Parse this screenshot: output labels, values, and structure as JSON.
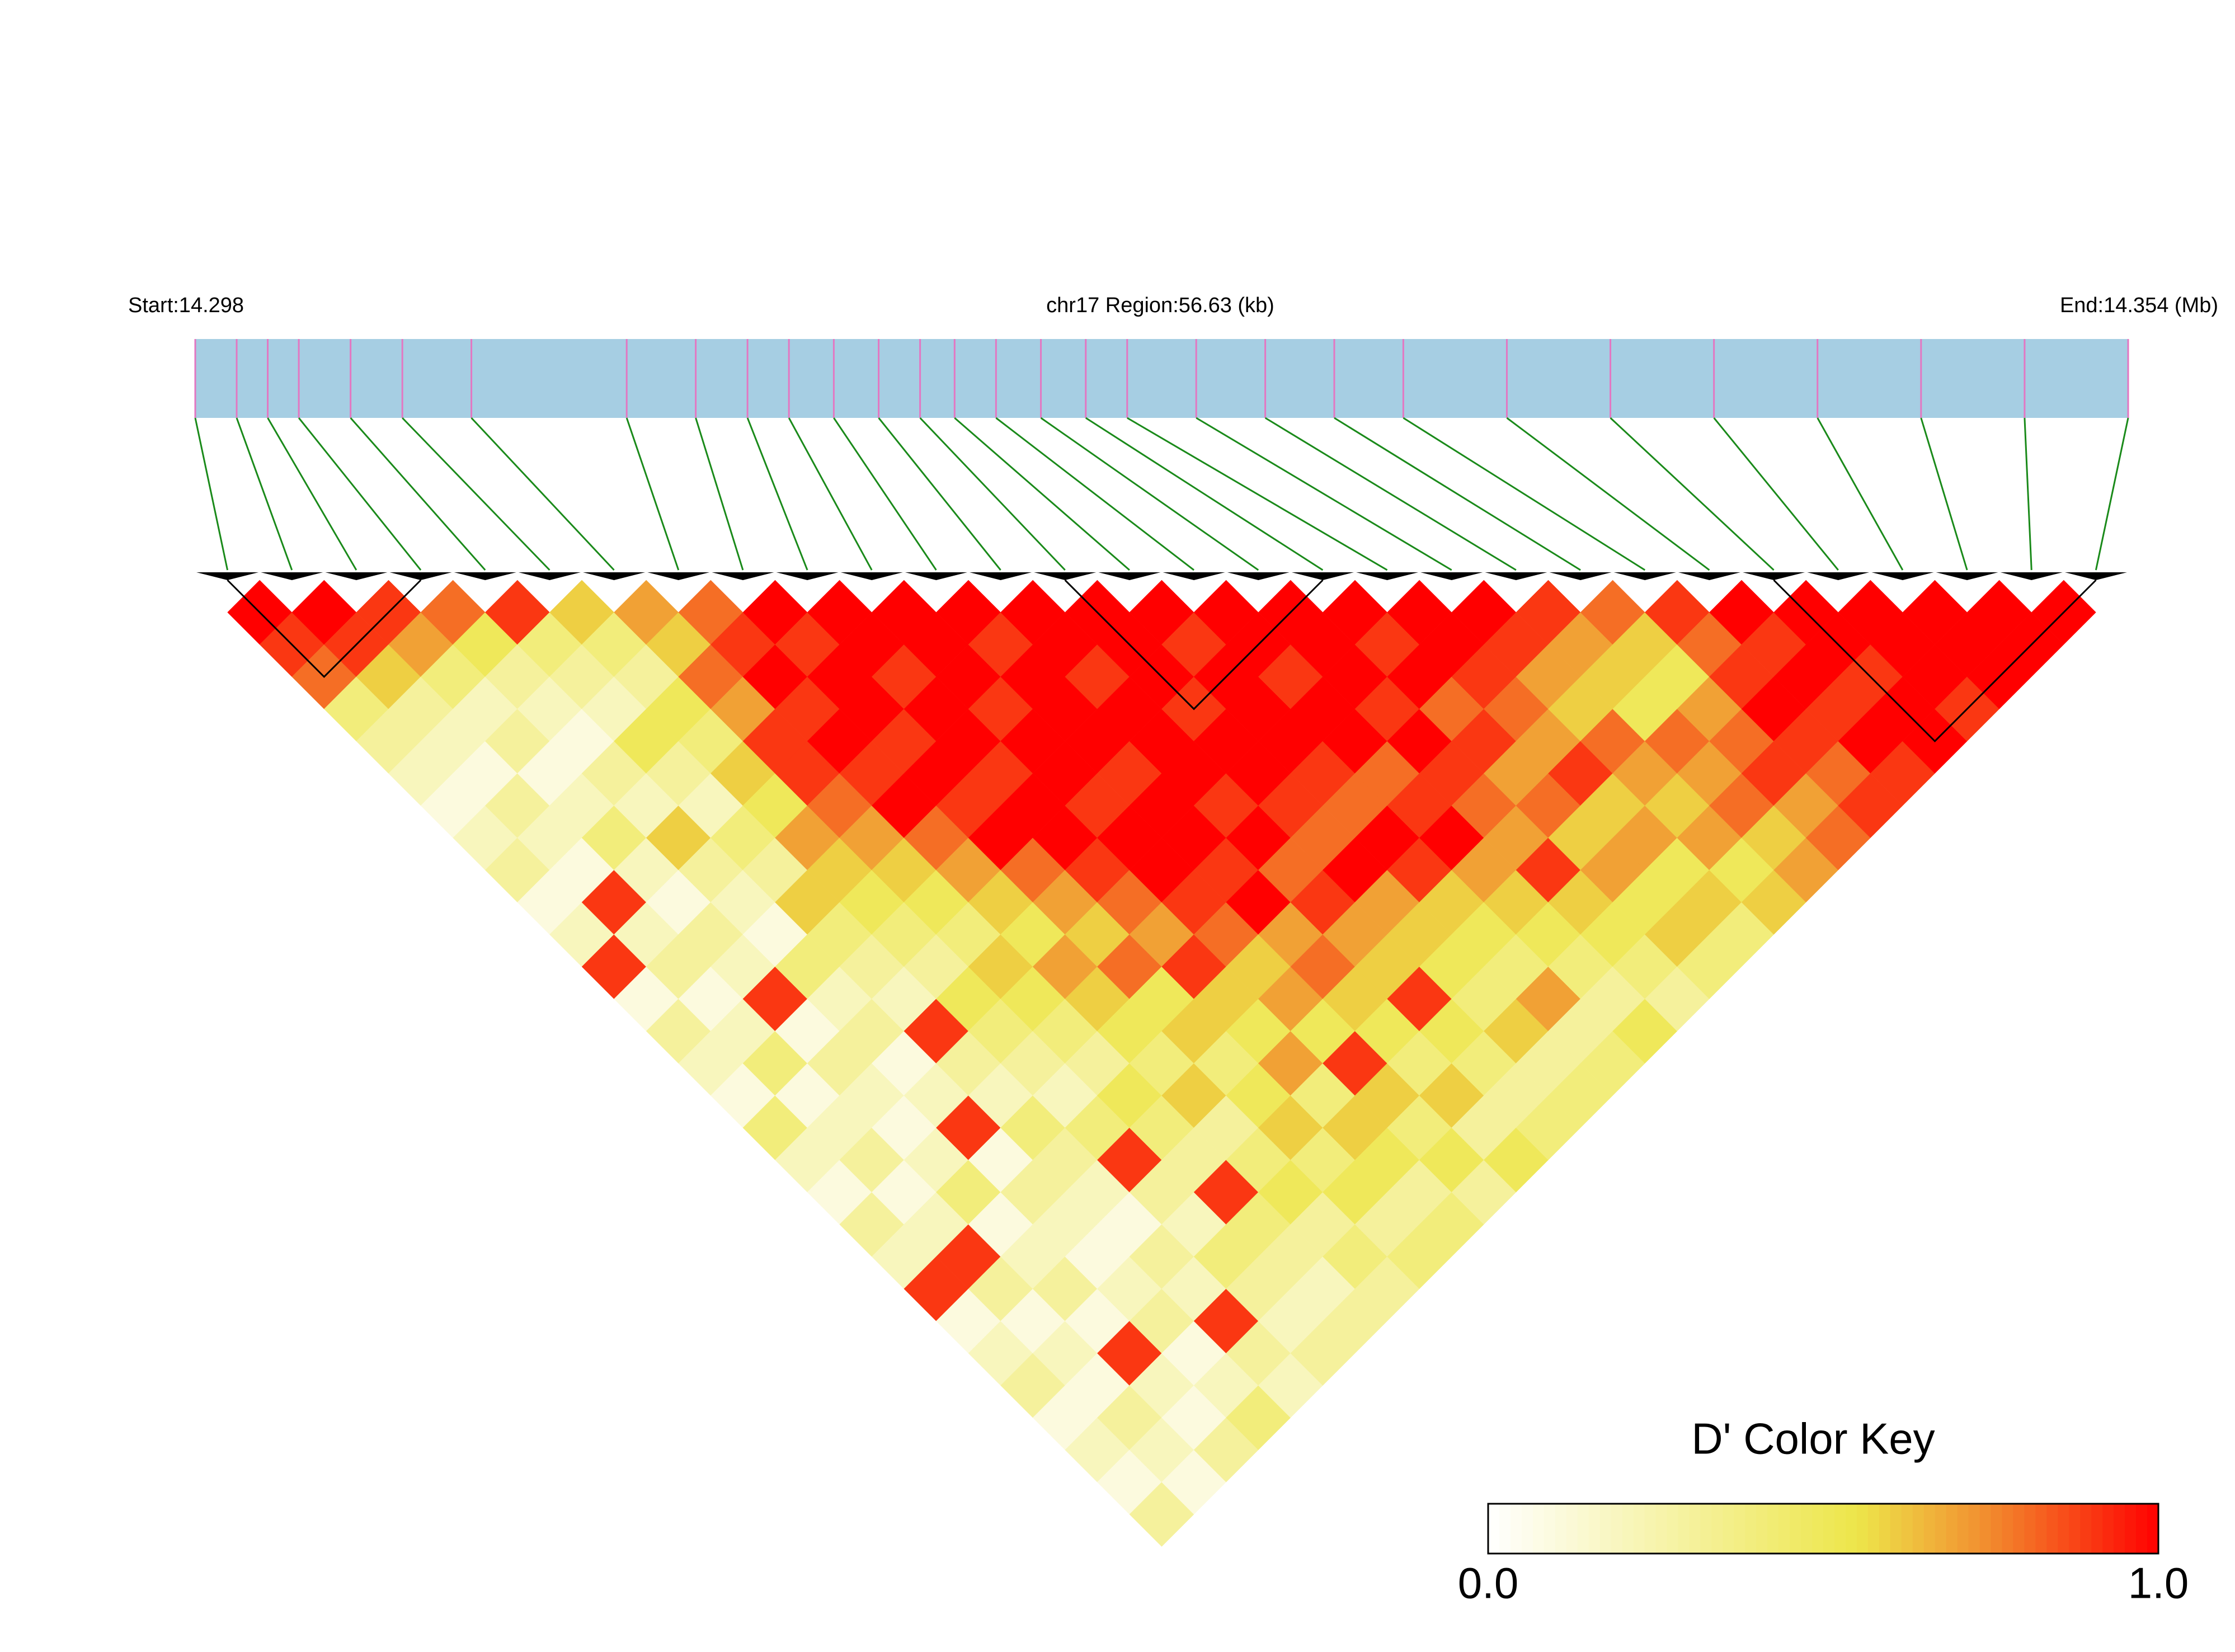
{
  "chart_data": {
    "type": "ld_heatmap",
    "start_label": "Start:14.298",
    "title": "chr17 Region:56.63 (kb)",
    "end_label": "End:14.354 (Mb)",
    "key_title": "D' Color Key",
    "xlim": [
      14.298,
      14.354
    ],
    "snp_positions": [
      14.298,
      14.2992,
      14.3001,
      14.301,
      14.3025,
      14.304,
      14.306,
      14.3105,
      14.3125,
      14.314,
      14.3152,
      14.3165,
      14.3178,
      14.319,
      14.32,
      14.3212,
      14.3225,
      14.3238,
      14.325,
      14.327,
      14.329,
      14.331,
      14.333,
      14.336,
      14.339,
      14.342,
      14.345,
      14.348,
      14.351,
      14.354
    ],
    "ld": [
      [
        1,
        0.9,
        0.8,
        0.4,
        0.3,
        0.2,
        0.1,
        0.2,
        0.3,
        0.1,
        0.2,
        0.9,
        0.1,
        0.3,
        0.2,
        0.1,
        0.4,
        0.2,
        0.1,
        0.3,
        0.2,
        0.9,
        0.1,
        0.2,
        0.3,
        0.1,
        0.2,
        0.1,
        0.3
      ],
      [
        1,
        0.9,
        0.6,
        0.3,
        0.2,
        0.1,
        0.3,
        0.2,
        0.1,
        0.9,
        0.2,
        0.3,
        0.1,
        0.2,
        0.4,
        0.1,
        0.2,
        0.3,
        0.1,
        0.2,
        0.9,
        0.3,
        0.1,
        0.2,
        0.1,
        0.3,
        0.2,
        0.1
      ],
      [
        0.9,
        0.7,
        0.4,
        0.2,
        0.3,
        0.1,
        0.2,
        0.4,
        0.2,
        0.1,
        0.3,
        0.2,
        0.9,
        0.1,
        0.3,
        0.2,
        0.1,
        0.2,
        0.4,
        0.1,
        0.2,
        0.3,
        0.1,
        0.9,
        0.2,
        0.1,
        0.3
      ],
      [
        0.8,
        0.5,
        0.3,
        0.2,
        0.1,
        0.3,
        0.2,
        0.6,
        0.3,
        0.2,
        0.1,
        0.4,
        0.2,
        0.3,
        0.1,
        0.2,
        0.9,
        0.1,
        0.3,
        0.2,
        0.1,
        0.2,
        0.3,
        0.1,
        0.2,
        0.4
      ],
      [
        0.9,
        0.4,
        0.3,
        0.2,
        0.5,
        0.3,
        0.2,
        0.4,
        0.3,
        0.6,
        0.4,
        0.3,
        0.2,
        0.9,
        0.3,
        0.2,
        0.4,
        0.3,
        0.2,
        0.1,
        0.3,
        0.2,
        0.9,
        0.3,
        0.2
      ],
      [
        0.6,
        0.4,
        0.3,
        0.5,
        0.4,
        0.6,
        0.5,
        0.7,
        0.6,
        0.5,
        0.4,
        0.3,
        0.5,
        0.4,
        0.3,
        0.2,
        0.4,
        0.9,
        0.3,
        0.2,
        0.4,
        0.3,
        0.2,
        0.3
      ],
      [
        0.7,
        0.6,
        0.8,
        0.7,
        0.9,
        0.9,
        0.8,
        0.7,
        0.6,
        0.5,
        0.4,
        0.6,
        0.5,
        0.4,
        0.3,
        0.5,
        0.4,
        0.3,
        0.9,
        0.4,
        0.3,
        0.2,
        0.3
      ],
      [
        0.8,
        0.9,
        1,
        0.9,
        1,
        0.9,
        1,
        0.8,
        0.7,
        0.6,
        0.5,
        0.7,
        0.6,
        0.5,
        0.4,
        0.6,
        0.3,
        0.4,
        0.5,
        0.3,
        0.4,
        0.3
      ],
      [
        1,
        0.9,
        1,
        1,
        0.9,
        1,
        0.9,
        1,
        0.8,
        0.7,
        0.6,
        0.8,
        0.5,
        0.6,
        0.4,
        0.5,
        0.6,
        0.4,
        0.5,
        0.3,
        0.4
      ],
      [
        1,
        1,
        0.9,
        1,
        1,
        0.9,
        1,
        1,
        0.9,
        0.8,
        0.7,
        0.9,
        0.6,
        0.5,
        0.7,
        0.4,
        0.6,
        0.5,
        0.3,
        0.4
      ],
      [
        1,
        1,
        1,
        0.9,
        1,
        1,
        0.9,
        1,
        1,
        0.9,
        0.8,
        0.6,
        0.7,
        0.5,
        0.9,
        0.6,
        0.4,
        0.5,
        0.3
      ],
      [
        1,
        0.9,
        1,
        1,
        1,
        0.9,
        1,
        1,
        0.9,
        1,
        0.7,
        0.8,
        0.6,
        0.5,
        0.4,
        0.6,
        0.3,
        0.5
      ],
      [
        1,
        1,
        0.9,
        1,
        1,
        1,
        0.9,
        1,
        0.8,
        0.9,
        0.7,
        0.6,
        0.9,
        0.5,
        0.4,
        0.3,
        0.4
      ],
      [
        1,
        1,
        1,
        0.9,
        1,
        1,
        0.9,
        0.8,
        1,
        0.7,
        0.6,
        0.5,
        0.4,
        0.6,
        0.3,
        0.4
      ],
      [
        1,
        0.9,
        1,
        1,
        1,
        0.9,
        0.8,
        1,
        0.9,
        0.6,
        0.5,
        0.4,
        0.7,
        0.3,
        0.4
      ],
      [
        1,
        1,
        0.9,
        1,
        1,
        0.8,
        0.9,
        1,
        0.7,
        0.6,
        0.5,
        0.4,
        0.3,
        0.5
      ],
      [
        1,
        1,
        1,
        0.9,
        1,
        0.9,
        0.8,
        0.7,
        0.9,
        0.6,
        0.5,
        0.4,
        0.3
      ],
      [
        1,
        0.9,
        1,
        0.8,
        0.9,
        0.7,
        0.8,
        0.6,
        0.7,
        0.5,
        0.6,
        0.4
      ],
      [
        1,
        1,
        0.9,
        0.8,
        0.7,
        0.9,
        0.6,
        0.7,
        0.5,
        0.6,
        0.4
      ],
      [
        1,
        0.9,
        0.7,
        0.6,
        0.8,
        0.7,
        0.6,
        0.7,
        0.5,
        0.6
      ],
      [
        0.9,
        0.7,
        0.6,
        0.5,
        0.8,
        0.7,
        0.8,
        0.6,
        0.7
      ],
      [
        0.8,
        0.6,
        0.5,
        0.7,
        0.8,
        0.9,
        0.7,
        0.8
      ],
      [
        0.9,
        0.8,
        0.9,
        1,
        0.9,
        0.8,
        0.9
      ],
      [
        1,
        0.9,
        1,
        0.9,
        1,
        0.9
      ],
      [
        1,
        1,
        0.9,
        1,
        1
      ],
      [
        1,
        1,
        1,
        0.9
      ],
      [
        1,
        1,
        1
      ],
      [
        1,
        1
      ],
      [
        1
      ]
    ],
    "blocks": [
      [
        0,
        3
      ],
      [
        13,
        17
      ],
      [
        24,
        29
      ]
    ],
    "bar_color": "#a6cee3",
    "snp_tick_color": "#e377c2",
    "link_color": "#1a8a1a",
    "colorscale": [
      {
        "value": 0,
        "color": "#ffffff"
      },
      {
        "value": 0.55,
        "color": "#ede64a"
      },
      {
        "value": 0.75,
        "color": "#f28a2e"
      },
      {
        "value": 1,
        "color": "#ff0000"
      }
    ],
    "key_lim": [
      0,
      1
    ],
    "key_ticks": [
      {
        "value": 0,
        "label": "0.0"
      },
      {
        "value": 1,
        "label": "1.0"
      }
    ]
  }
}
